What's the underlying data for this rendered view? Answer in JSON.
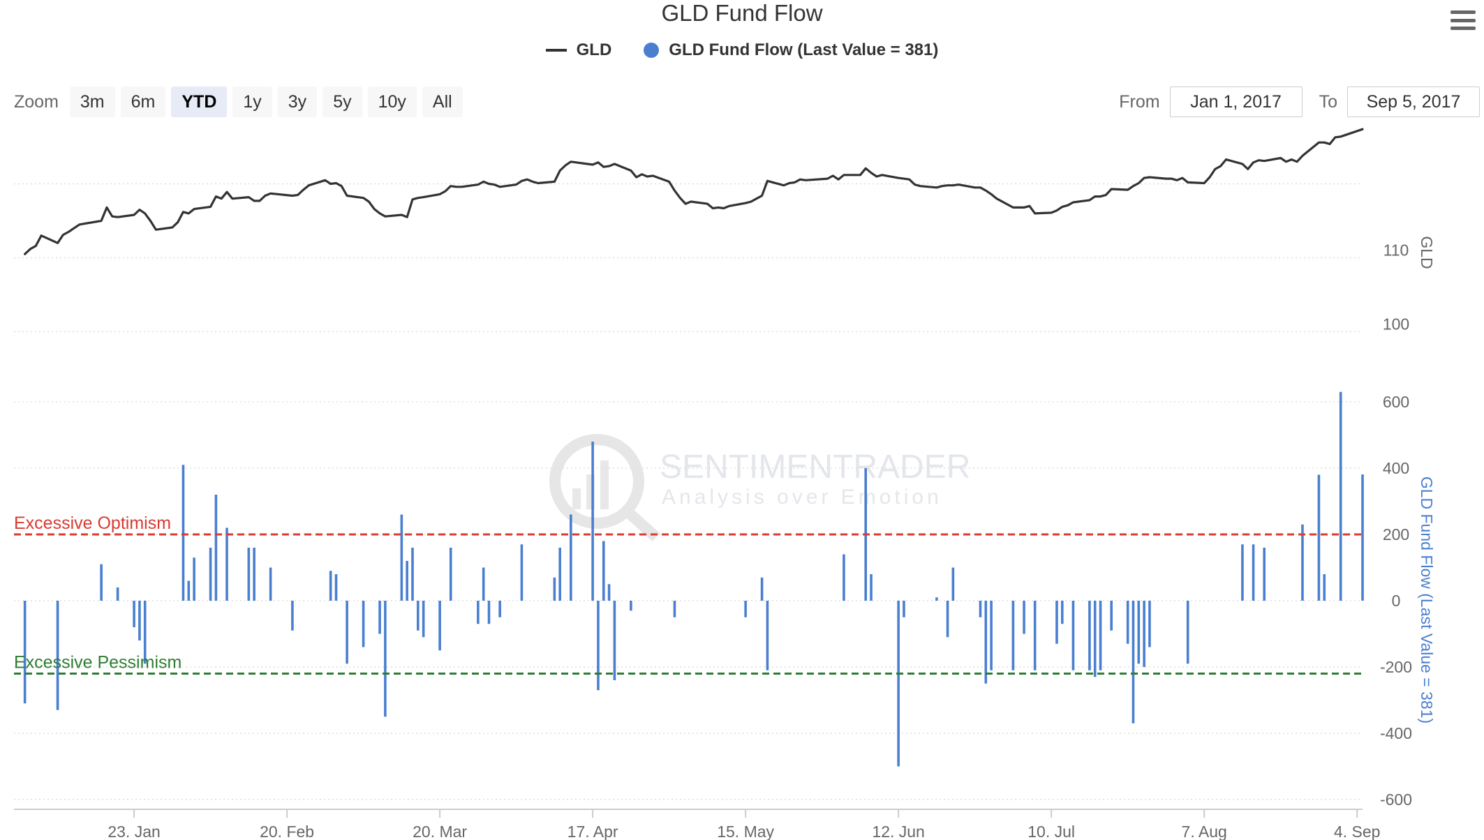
{
  "chart_data": {
    "type": "line",
    "title": "GLD Fund Flow",
    "legend": {
      "placement": "top-center",
      "entries": [
        {
          "label": "GLD",
          "type": "line",
          "color": "#333333"
        },
        {
          "label": "GLD Fund Flow (Last Value = 381)",
          "type": "dot",
          "color": "#4a7fd0"
        }
      ]
    },
    "x_ticks": [
      "23. Jan",
      "20. Feb",
      "20. Mar",
      "17. Apr",
      "15. May",
      "12. Jun",
      "10. Jul",
      "7. Aug",
      "4. Sep"
    ],
    "x_tick_dates": [
      "2017-01-23",
      "2017-02-20",
      "2017-03-20",
      "2017-04-17",
      "2017-05-15",
      "2017-06-12",
      "2017-07-10",
      "2017-08-07",
      "2017-09-04"
    ],
    "x_range": [
      "2017-01-01",
      "2017-09-05"
    ],
    "grid": true,
    "series": [
      {
        "name": "GLD",
        "type": "line",
        "color": "#333333",
        "axis": {
          "label": "GLD",
          "ticks": [
            "110",
            "100"
          ],
          "ylim": [
            90.5,
            126
          ]
        },
        "data": [
          [
            "2017-01-03",
            110.5
          ],
          [
            "2017-01-04",
            111.2
          ],
          [
            "2017-01-05",
            111.6
          ],
          [
            "2017-01-06",
            113.0
          ],
          [
            "2017-01-09",
            112.0
          ],
          [
            "2017-01-10",
            113.1
          ],
          [
            "2017-01-11",
            113.5
          ],
          [
            "2017-01-12",
            114.0
          ],
          [
            "2017-01-13",
            114.5
          ],
          [
            "2017-01-17",
            115.0
          ],
          [
            "2017-01-18",
            116.8
          ],
          [
            "2017-01-19",
            115.6
          ],
          [
            "2017-01-20",
            115.5
          ],
          [
            "2017-01-23",
            115.8
          ],
          [
            "2017-01-24",
            116.5
          ],
          [
            "2017-01-25",
            116.0
          ],
          [
            "2017-01-26",
            115.0
          ],
          [
            "2017-01-27",
            113.8
          ],
          [
            "2017-01-30",
            114.1
          ],
          [
            "2017-01-31",
            114.8
          ],
          [
            "2017-02-01",
            116.2
          ],
          [
            "2017-02-02",
            116.0
          ],
          [
            "2017-02-03",
            116.6
          ],
          [
            "2017-02-06",
            116.9
          ],
          [
            "2017-02-07",
            118.3
          ],
          [
            "2017-02-08",
            118.0
          ],
          [
            "2017-02-09",
            118.9
          ],
          [
            "2017-02-10",
            118.0
          ],
          [
            "2017-02-13",
            118.2
          ],
          [
            "2017-02-14",
            117.7
          ],
          [
            "2017-02-15",
            117.7
          ],
          [
            "2017-02-16",
            118.4
          ],
          [
            "2017-02-17",
            118.7
          ],
          [
            "2017-02-21",
            118.4
          ],
          [
            "2017-02-22",
            118.5
          ],
          [
            "2017-02-23",
            119.2
          ],
          [
            "2017-02-24",
            119.8
          ],
          [
            "2017-02-27",
            120.5
          ],
          [
            "2017-02-28",
            120.0
          ],
          [
            "2017-03-01",
            120.1
          ],
          [
            "2017-03-02",
            119.7
          ],
          [
            "2017-03-03",
            118.4
          ],
          [
            "2017-03-06",
            118.1
          ],
          [
            "2017-03-07",
            117.6
          ],
          [
            "2017-03-08",
            116.6
          ],
          [
            "2017-03-09",
            116.0
          ],
          [
            "2017-03-10",
            115.6
          ],
          [
            "2017-03-13",
            115.8
          ],
          [
            "2017-03-14",
            115.5
          ],
          [
            "2017-03-15",
            117.9
          ],
          [
            "2017-03-16",
            118.1
          ],
          [
            "2017-03-17",
            118.2
          ],
          [
            "2017-03-20",
            118.6
          ],
          [
            "2017-03-21",
            119.0
          ],
          [
            "2017-03-22",
            119.7
          ],
          [
            "2017-03-23",
            119.6
          ],
          [
            "2017-03-24",
            119.6
          ],
          [
            "2017-03-27",
            119.9
          ],
          [
            "2017-03-28",
            120.3
          ],
          [
            "2017-03-29",
            120.0
          ],
          [
            "2017-03-30",
            119.9
          ],
          [
            "2017-03-31",
            119.6
          ],
          [
            "2017-04-03",
            119.9
          ],
          [
            "2017-04-04",
            120.4
          ],
          [
            "2017-04-05",
            120.6
          ],
          [
            "2017-04-06",
            120.3
          ],
          [
            "2017-04-07",
            120.1
          ],
          [
            "2017-04-10",
            120.3
          ],
          [
            "2017-04-11",
            121.8
          ],
          [
            "2017-04-12",
            122.5
          ],
          [
            "2017-04-13",
            123.0
          ],
          [
            "2017-04-17",
            122.6
          ],
          [
            "2017-04-18",
            122.9
          ],
          [
            "2017-04-19",
            122.3
          ],
          [
            "2017-04-20",
            122.4
          ],
          [
            "2017-04-21",
            122.7
          ],
          [
            "2017-04-24",
            121.8
          ],
          [
            "2017-04-25",
            120.9
          ],
          [
            "2017-04-26",
            121.3
          ],
          [
            "2017-04-27",
            121.0
          ],
          [
            "2017-04-28",
            121.1
          ],
          [
            "2017-05-01",
            120.3
          ],
          [
            "2017-05-02",
            119.1
          ],
          [
            "2017-05-03",
            118.1
          ],
          [
            "2017-05-04",
            117.3
          ],
          [
            "2017-05-05",
            117.6
          ],
          [
            "2017-05-08",
            117.3
          ],
          [
            "2017-05-09",
            116.7
          ],
          [
            "2017-05-10",
            116.8
          ],
          [
            "2017-05-11",
            116.7
          ],
          [
            "2017-05-12",
            117.0
          ],
          [
            "2017-05-15",
            117.4
          ],
          [
            "2017-05-16",
            117.6
          ],
          [
            "2017-05-17",
            118.0
          ],
          [
            "2017-05-18",
            118.4
          ],
          [
            "2017-05-19",
            120.4
          ],
          [
            "2017-05-22",
            119.8
          ],
          [
            "2017-05-23",
            120.1
          ],
          [
            "2017-05-24",
            120.2
          ],
          [
            "2017-05-25",
            120.6
          ],
          [
            "2017-05-26",
            120.5
          ],
          [
            "2017-05-30",
            120.7
          ],
          [
            "2017-05-31",
            121.1
          ],
          [
            "2017-06-01",
            120.6
          ],
          [
            "2017-06-02",
            121.2
          ],
          [
            "2017-06-05",
            121.2
          ],
          [
            "2017-06-06",
            122.1
          ],
          [
            "2017-06-07",
            121.5
          ],
          [
            "2017-06-08",
            121.0
          ],
          [
            "2017-06-09",
            121.2
          ],
          [
            "2017-06-12",
            120.8
          ],
          [
            "2017-06-13",
            120.7
          ],
          [
            "2017-06-14",
            120.6
          ],
          [
            "2017-06-15",
            119.9
          ],
          [
            "2017-06-16",
            119.7
          ],
          [
            "2017-06-19",
            119.5
          ],
          [
            "2017-06-20",
            119.7
          ],
          [
            "2017-06-21",
            119.8
          ],
          [
            "2017-06-22",
            119.8
          ],
          [
            "2017-06-23",
            119.9
          ],
          [
            "2017-06-26",
            119.5
          ],
          [
            "2017-06-27",
            119.5
          ],
          [
            "2017-06-28",
            119.1
          ],
          [
            "2017-06-29",
            118.6
          ],
          [
            "2017-06-30",
            118.0
          ],
          [
            "2017-07-03",
            116.8
          ],
          [
            "2017-07-05",
            116.8
          ],
          [
            "2017-07-06",
            117.0
          ],
          [
            "2017-07-07",
            116.0
          ],
          [
            "2017-07-10",
            116.1
          ],
          [
            "2017-07-11",
            116.4
          ],
          [
            "2017-07-12",
            116.9
          ],
          [
            "2017-07-13",
            117.1
          ],
          [
            "2017-07-14",
            117.5
          ],
          [
            "2017-07-17",
            117.8
          ],
          [
            "2017-07-18",
            118.3
          ],
          [
            "2017-07-19",
            118.3
          ],
          [
            "2017-07-20",
            118.5
          ],
          [
            "2017-07-21",
            119.3
          ],
          [
            "2017-07-24",
            119.2
          ],
          [
            "2017-07-25",
            119.7
          ],
          [
            "2017-07-26",
            120.1
          ],
          [
            "2017-07-27",
            120.8
          ],
          [
            "2017-07-28",
            120.9
          ],
          [
            "2017-07-31",
            120.7
          ],
          [
            "2017-08-01",
            120.7
          ],
          [
            "2017-08-02",
            120.5
          ],
          [
            "2017-08-03",
            120.8
          ],
          [
            "2017-08-04",
            120.2
          ],
          [
            "2017-08-07",
            120.1
          ],
          [
            "2017-08-08",
            120.9
          ],
          [
            "2017-08-09",
            122.0
          ],
          [
            "2017-08-10",
            122.4
          ],
          [
            "2017-08-11",
            123.3
          ],
          [
            "2017-08-14",
            122.7
          ],
          [
            "2017-08-15",
            122.0
          ],
          [
            "2017-08-16",
            122.9
          ],
          [
            "2017-08-17",
            123.2
          ],
          [
            "2017-08-18",
            123.1
          ],
          [
            "2017-08-21",
            123.5
          ],
          [
            "2017-08-22",
            123.0
          ],
          [
            "2017-08-23",
            123.3
          ],
          [
            "2017-08-24",
            123.0
          ],
          [
            "2017-08-25",
            123.8
          ],
          [
            "2017-08-28",
            125.6
          ],
          [
            "2017-08-29",
            125.6
          ],
          [
            "2017-08-30",
            125.4
          ],
          [
            "2017-08-31",
            126.3
          ],
          [
            "2017-09-01",
            126.4
          ],
          [
            "2017-09-05",
            127.4
          ]
        ]
      },
      {
        "name": "GLD Fund Flow (Last Value = 381)",
        "type": "column",
        "color": "#4a7fd0",
        "axis": {
          "label": "GLD Fund Flow (Last Value = 381)",
          "ticks": [
            "600",
            "400",
            "200",
            "0",
            "-200",
            "-400",
            "-600"
          ],
          "ylim": [
            -600,
            600
          ]
        },
        "data": [
          [
            "2017-01-03",
            -310
          ],
          [
            "2017-01-09",
            -330
          ],
          [
            "2017-01-17",
            110
          ],
          [
            "2017-01-20",
            40
          ],
          [
            "2017-01-23",
            -80
          ],
          [
            "2017-01-24",
            -120
          ],
          [
            "2017-01-25",
            -190
          ],
          [
            "2017-02-01",
            410
          ],
          [
            "2017-02-02",
            60
          ],
          [
            "2017-02-03",
            130
          ],
          [
            "2017-02-06",
            160
          ],
          [
            "2017-02-07",
            320
          ],
          [
            "2017-02-09",
            220
          ],
          [
            "2017-02-13",
            160
          ],
          [
            "2017-02-14",
            160
          ],
          [
            "2017-02-17",
            100
          ],
          [
            "2017-02-21",
            -90
          ],
          [
            "2017-02-28",
            90
          ],
          [
            "2017-03-01",
            80
          ],
          [
            "2017-03-03",
            -190
          ],
          [
            "2017-03-06",
            -140
          ],
          [
            "2017-03-09",
            -100
          ],
          [
            "2017-03-10",
            -350
          ],
          [
            "2017-03-13",
            260
          ],
          [
            "2017-03-14",
            120
          ],
          [
            "2017-03-15",
            160
          ],
          [
            "2017-03-16",
            -90
          ],
          [
            "2017-03-17",
            -110
          ],
          [
            "2017-03-20",
            -150
          ],
          [
            "2017-03-22",
            160
          ],
          [
            "2017-03-27",
            -70
          ],
          [
            "2017-03-28",
            100
          ],
          [
            "2017-03-29",
            -70
          ],
          [
            "2017-03-31",
            -50
          ],
          [
            "2017-04-04",
            170
          ],
          [
            "2017-04-10",
            70
          ],
          [
            "2017-04-11",
            160
          ],
          [
            "2017-04-13",
            260
          ],
          [
            "2017-04-17",
            480
          ],
          [
            "2017-04-18",
            -270
          ],
          [
            "2017-04-19",
            180
          ],
          [
            "2017-04-20",
            50
          ],
          [
            "2017-04-21",
            -240
          ],
          [
            "2017-04-24",
            -30
          ],
          [
            "2017-05-02",
            -50
          ],
          [
            "2017-05-15",
            -50
          ],
          [
            "2017-05-18",
            70
          ],
          [
            "2017-05-19",
            -210
          ],
          [
            "2017-06-02",
            140
          ],
          [
            "2017-06-06",
            400
          ],
          [
            "2017-06-07",
            80
          ],
          [
            "2017-06-12",
            -500
          ],
          [
            "2017-06-13",
            -50
          ],
          [
            "2017-06-19",
            10
          ],
          [
            "2017-06-21",
            -110
          ],
          [
            "2017-06-22",
            100
          ],
          [
            "2017-06-27",
            -50
          ],
          [
            "2017-06-28",
            -250
          ],
          [
            "2017-06-29",
            -210
          ],
          [
            "2017-07-03",
            -210
          ],
          [
            "2017-07-05",
            -100
          ],
          [
            "2017-07-07",
            -210
          ],
          [
            "2017-07-11",
            -130
          ],
          [
            "2017-07-12",
            -70
          ],
          [
            "2017-07-14",
            -210
          ],
          [
            "2017-07-17",
            -210
          ],
          [
            "2017-07-18",
            -230
          ],
          [
            "2017-07-19",
            -210
          ],
          [
            "2017-07-21",
            -90
          ],
          [
            "2017-07-24",
            -130
          ],
          [
            "2017-07-25",
            -370
          ],
          [
            "2017-07-26",
            -190
          ],
          [
            "2017-07-27",
            -200
          ],
          [
            "2017-07-28",
            -140
          ],
          [
            "2017-08-04",
            -190
          ],
          [
            "2017-08-14",
            170
          ],
          [
            "2017-08-16",
            170
          ],
          [
            "2017-08-18",
            160
          ],
          [
            "2017-08-25",
            230
          ],
          [
            "2017-08-28",
            380
          ],
          [
            "2017-08-29",
            80
          ],
          [
            "2017-09-01",
            630
          ],
          [
            "2017-09-05",
            381
          ]
        ]
      }
    ],
    "plot_lines": [
      {
        "label": "Excessive Optimism",
        "value": 200,
        "color": "#d93a33",
        "dash": true
      },
      {
        "label": "Excessive Pessimism",
        "value": -220,
        "color": "#2e7d32",
        "dash": true
      }
    ],
    "watermark": {
      "name": "SENTIMENTRADER",
      "tagline": "Analysis over Emotion"
    }
  },
  "rangeSelector": {
    "zoom_label": "Zoom",
    "buttons": [
      "3m",
      "6m",
      "YTD",
      "1y",
      "3y",
      "5y",
      "10y",
      "All"
    ],
    "selected": "YTD",
    "from_label": "From",
    "from_value": "Jan 1, 2017",
    "to_label": "To",
    "to_value": "Sep 5, 2017"
  },
  "icons": {
    "menu": "hamburger-menu-icon"
  }
}
